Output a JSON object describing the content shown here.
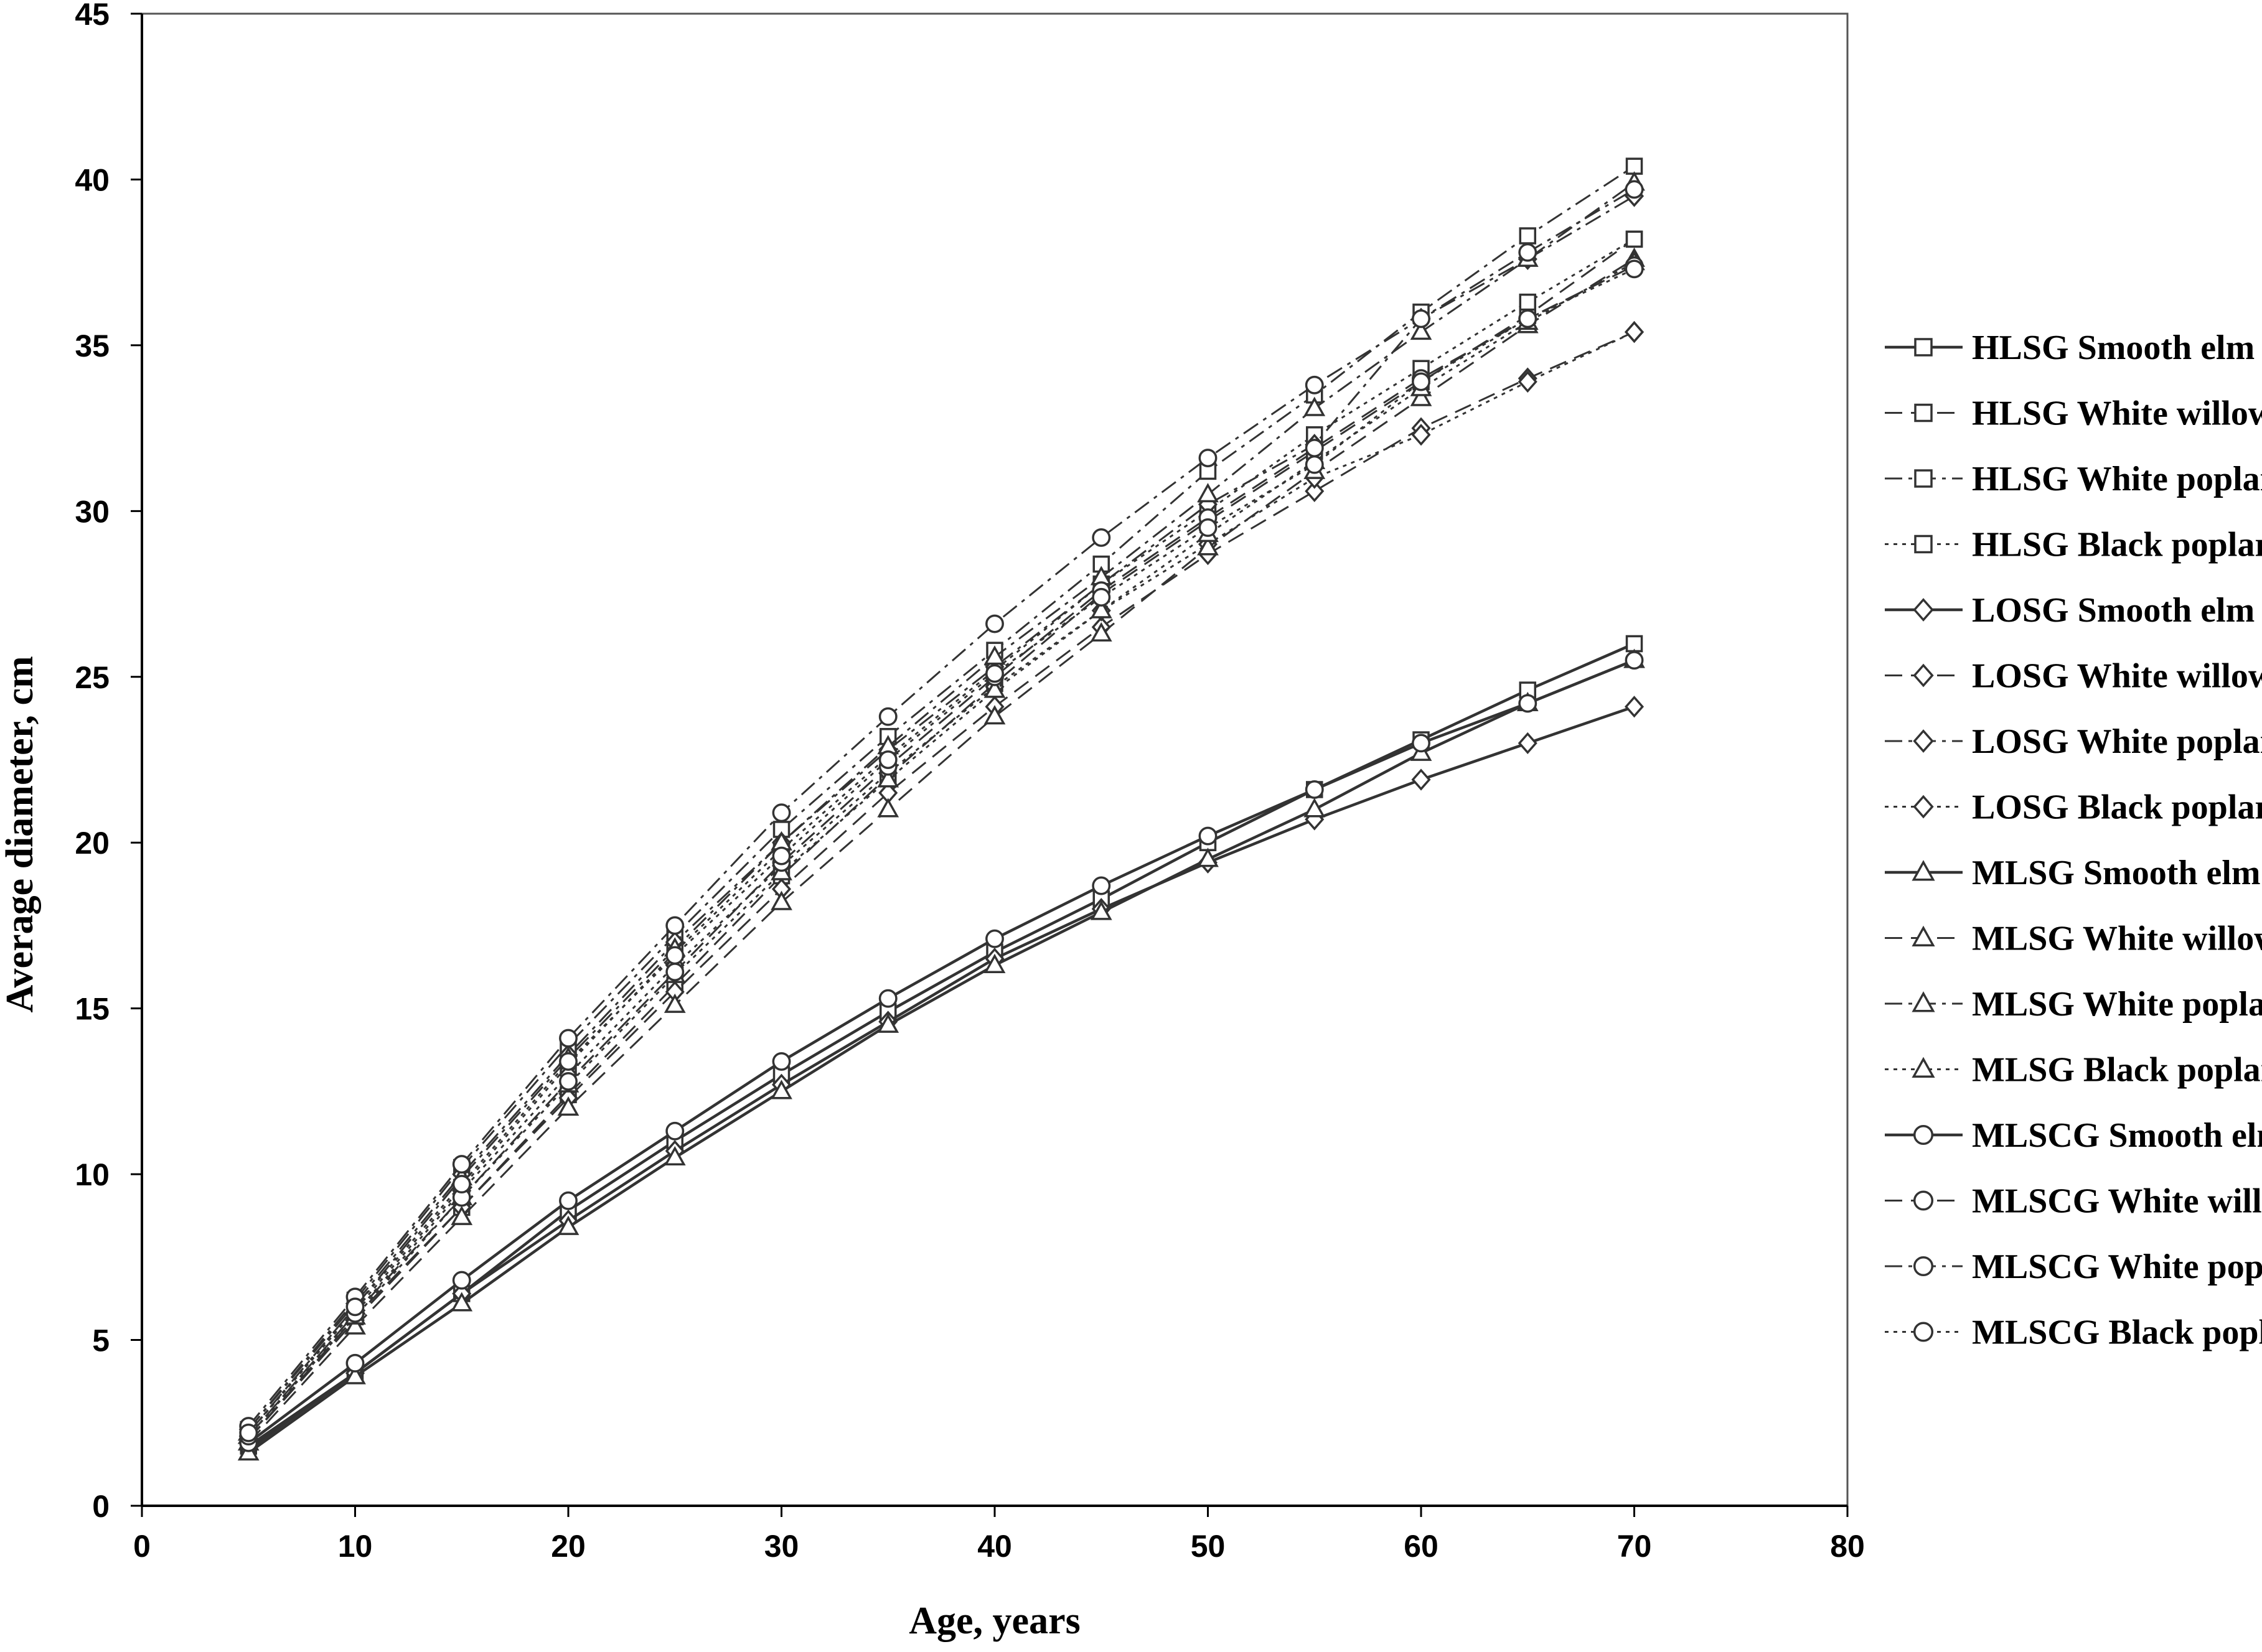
{
  "chart_data": {
    "type": "line",
    "xlabel": "Age, years",
    "ylabel": "Average diameter, cm",
    "xlim": [
      0,
      80
    ],
    "ylim": [
      0,
      45
    ],
    "xticks": [
      0,
      10,
      20,
      30,
      40,
      50,
      60,
      70,
      80
    ],
    "yticks": [
      0,
      5,
      10,
      15,
      20,
      25,
      30,
      35,
      40,
      45
    ],
    "grid": false,
    "legend_position": "right",
    "x": [
      5,
      10,
      15,
      20,
      25,
      30,
      35,
      40,
      45,
      50,
      55,
      60,
      65,
      70
    ],
    "series": [
      {
        "name": "HLSG Smooth  elm",
        "marker": "square",
        "dash": "solid",
        "values": [
          1.8,
          4.0,
          6.4,
          8.9,
          11.0,
          13.0,
          14.9,
          16.7,
          18.3,
          20.0,
          21.6,
          23.1,
          24.6,
          26.0
        ]
      },
      {
        "name": "HLSG White willow",
        "marker": "square",
        "dash": "dashed",
        "values": [
          2.0,
          5.7,
          9.0,
          12.4,
          15.7,
          19.0,
          22.0,
          24.8,
          27.5,
          29.7,
          31.8,
          33.9,
          35.9,
          38.2
        ]
      },
      {
        "name": "HLSG White poplar",
        "marker": "square",
        "dash": "dashdot",
        "values": [
          2.3,
          6.2,
          10.2,
          13.9,
          17.2,
          20.4,
          23.2,
          25.8,
          28.4,
          31.2,
          33.5,
          36.0,
          38.3,
          40.4
        ]
      },
      {
        "name": "HLSG Black poplar",
        "marker": "square",
        "dash": "dotted",
        "values": [
          2.2,
          5.9,
          9.6,
          13.3,
          16.7,
          19.8,
          22.6,
          25.2,
          27.8,
          30.0,
          32.3,
          34.3,
          36.3,
          38.2
        ]
      },
      {
        "name": "LOSG Smooth  elm",
        "marker": "diamond",
        "dash": "solid",
        "values": [
          1.7,
          4.0,
          6.4,
          8.6,
          10.7,
          12.7,
          14.6,
          16.5,
          18.0,
          19.4,
          20.7,
          21.9,
          23.0,
          24.1
        ]
      },
      {
        "name": "LOSG White willow",
        "marker": "diamond",
        "dash": "dashed",
        "values": [
          2.0,
          5.6,
          9.0,
          12.3,
          15.5,
          18.6,
          21.5,
          24.1,
          26.5,
          28.7,
          30.6,
          32.5,
          34.0,
          35.4
        ]
      },
      {
        "name": "LOSG White poplar",
        "marker": "diamond",
        "dash": "dashdot",
        "values": [
          2.3,
          6.1,
          10.0,
          13.6,
          17.0,
          20.0,
          22.8,
          25.3,
          27.8,
          30.2,
          32.0,
          35.8,
          37.6,
          39.5
        ]
      },
      {
        "name": "LOSG Black poplar",
        "marker": "diamond",
        "dash": "dotted",
        "values": [
          2.1,
          5.8,
          9.5,
          13.0,
          16.3,
          19.3,
          22.1,
          24.7,
          27.0,
          29.0,
          31.0,
          32.3,
          33.9,
          35.4
        ]
      },
      {
        "name": "MLSG Smooth  elm",
        "marker": "triangle",
        "dash": "solid",
        "values": [
          1.6,
          3.9,
          6.1,
          8.4,
          10.5,
          12.5,
          14.5,
          16.3,
          17.9,
          19.5,
          21.0,
          22.7,
          24.2,
          25.5
        ]
      },
      {
        "name": "MLSG White willow",
        "marker": "triangle",
        "dash": "dashed",
        "values": [
          1.9,
          5.4,
          8.7,
          12.0,
          15.1,
          18.2,
          21.0,
          23.8,
          26.3,
          28.9,
          31.2,
          33.4,
          35.6,
          37.6
        ]
      },
      {
        "name": "MLSG White poplar",
        "marker": "triangle",
        "dash": "dashdot",
        "values": [
          2.2,
          6.0,
          9.9,
          13.5,
          16.8,
          20.0,
          22.9,
          25.6,
          28.0,
          30.5,
          33.1,
          35.4,
          37.6,
          39.9
        ]
      },
      {
        "name": "MLSG Black poplar",
        "marker": "triangle",
        "dash": "dotted",
        "values": [
          2.1,
          5.7,
          9.3,
          12.7,
          16.0,
          19.1,
          21.9,
          24.6,
          27.0,
          29.3,
          31.5,
          33.7,
          35.7,
          37.5
        ]
      },
      {
        "name": "MLSCG Smooth elm",
        "marker": "circle",
        "dash": "solid",
        "values": [
          1.9,
          4.3,
          6.8,
          9.2,
          11.3,
          13.4,
          15.3,
          17.1,
          18.7,
          20.2,
          21.6,
          23.0,
          24.2,
          25.5
        ]
      },
      {
        "name": "MLSCG White willow",
        "marker": "circle",
        "dash": "dashed",
        "values": [
          2.1,
          5.8,
          9.3,
          12.8,
          16.1,
          19.4,
          22.3,
          25.0,
          27.6,
          29.8,
          31.9,
          34.0,
          35.8,
          37.4
        ]
      },
      {
        "name": "MLSCG White poplar",
        "marker": "circle",
        "dash": "dashdot",
        "values": [
          2.4,
          6.3,
          10.3,
          14.1,
          17.5,
          20.9,
          23.8,
          26.6,
          29.2,
          31.6,
          33.8,
          35.8,
          37.8,
          39.7
        ]
      },
      {
        "name": "MLSCG Black poplar",
        "marker": "circle",
        "dash": "dotted",
        "values": [
          2.2,
          6.0,
          9.7,
          13.4,
          16.6,
          19.6,
          22.5,
          25.1,
          27.4,
          29.5,
          31.4,
          33.9,
          35.8,
          37.3
        ]
      }
    ]
  }
}
